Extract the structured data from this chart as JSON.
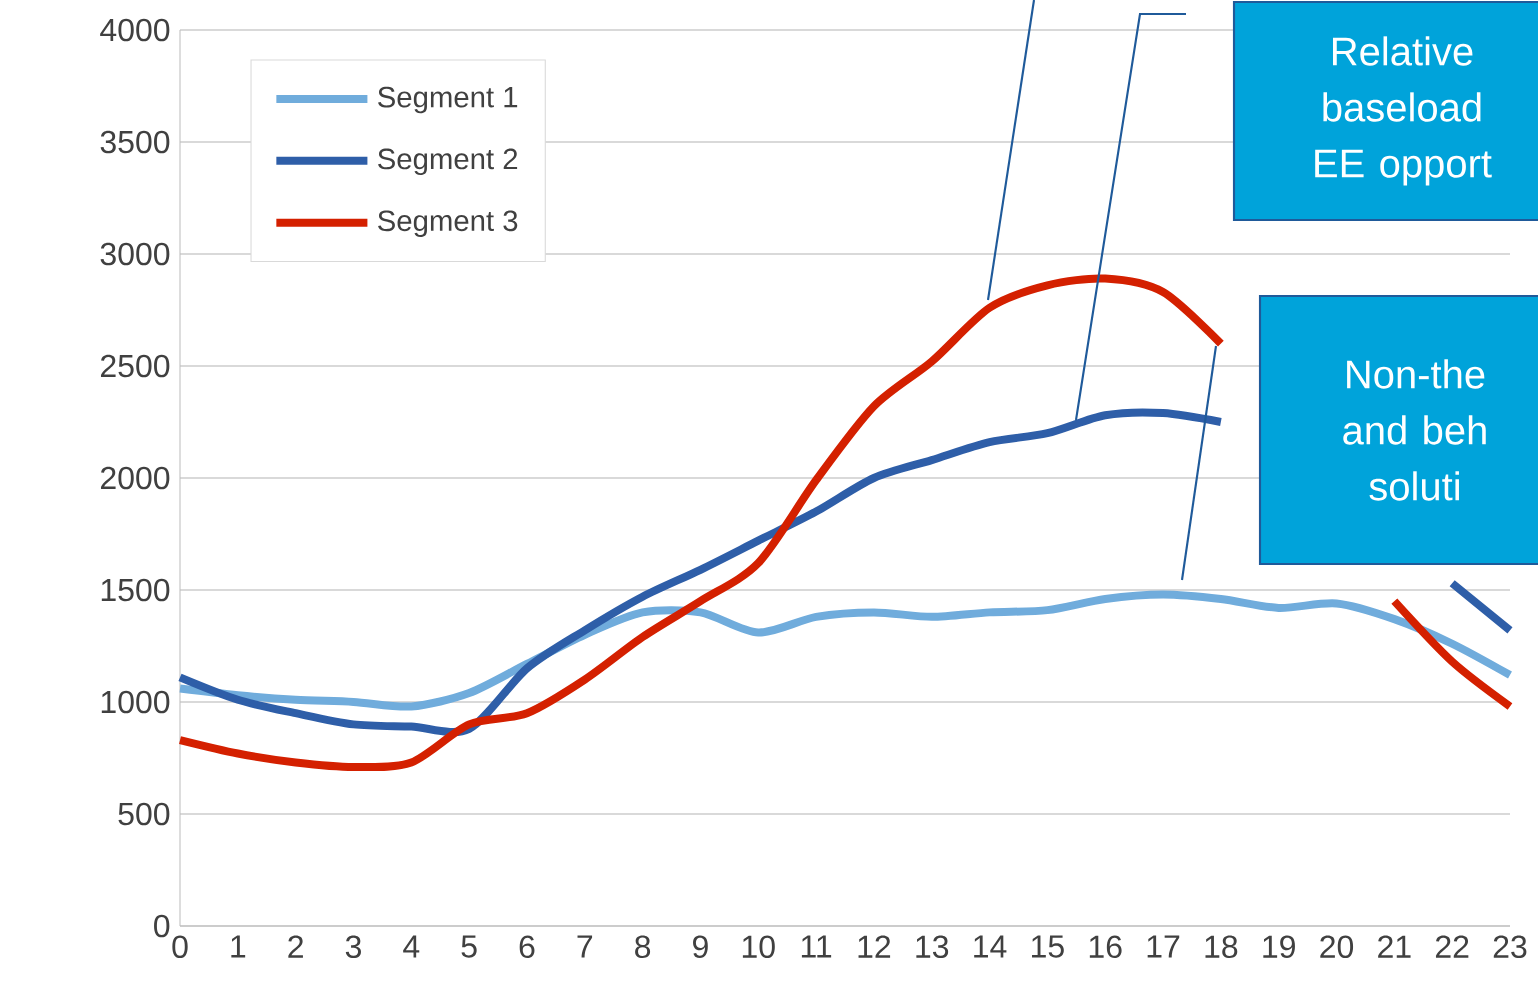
{
  "chart_data": {
    "type": "line",
    "categories": [
      "0",
      "1",
      "2",
      "3",
      "4",
      "5",
      "6",
      "7",
      "8",
      "9",
      "10",
      "11",
      "12",
      "13",
      "14",
      "15",
      "16",
      "17",
      "18",
      "19",
      "20",
      "21",
      "22",
      "23"
    ],
    "series": [
      {
        "name": "Segment 1",
        "color": "#70acdc",
        "values": [
          1060,
          1030,
          1010,
          1000,
          980,
          1040,
          1170,
          1300,
          1400,
          1400,
          1310,
          1380,
          1400,
          1380,
          1400,
          1410,
          1460,
          1480,
          1460,
          1420,
          1440,
          1370,
          1260,
          1120
        ]
      },
      {
        "name": "Segment 2",
        "color": "#2e5ea8",
        "values": [
          1110,
          1010,
          950,
          900,
          890,
          880,
          1150,
          1320,
          1470,
          1590,
          1720,
          1850,
          2000,
          2080,
          2160,
          2200,
          2280,
          2290,
          2250,
          null,
          null,
          null,
          1530,
          1320
        ]
      },
      {
        "name": "Segment 3",
        "color": "#d42000",
        "values": [
          830,
          770,
          730,
          710,
          730,
          900,
          950,
          1100,
          1290,
          1450,
          1620,
          1990,
          2320,
          2520,
          2760,
          2860,
          2890,
          2830,
          2600,
          null,
          null,
          1450,
          1180,
          980
        ]
      }
    ],
    "ylim": [
      0,
      4000
    ],
    "yticks": [
      0,
      500,
      1000,
      1500,
      2000,
      2500,
      3000,
      3500,
      4000
    ],
    "grid": "y",
    "legend": "top left",
    "marker": "none",
    "annotations": [
      "Relative baseload EE opport",
      "Non-the and beh soluti"
    ]
  }
}
